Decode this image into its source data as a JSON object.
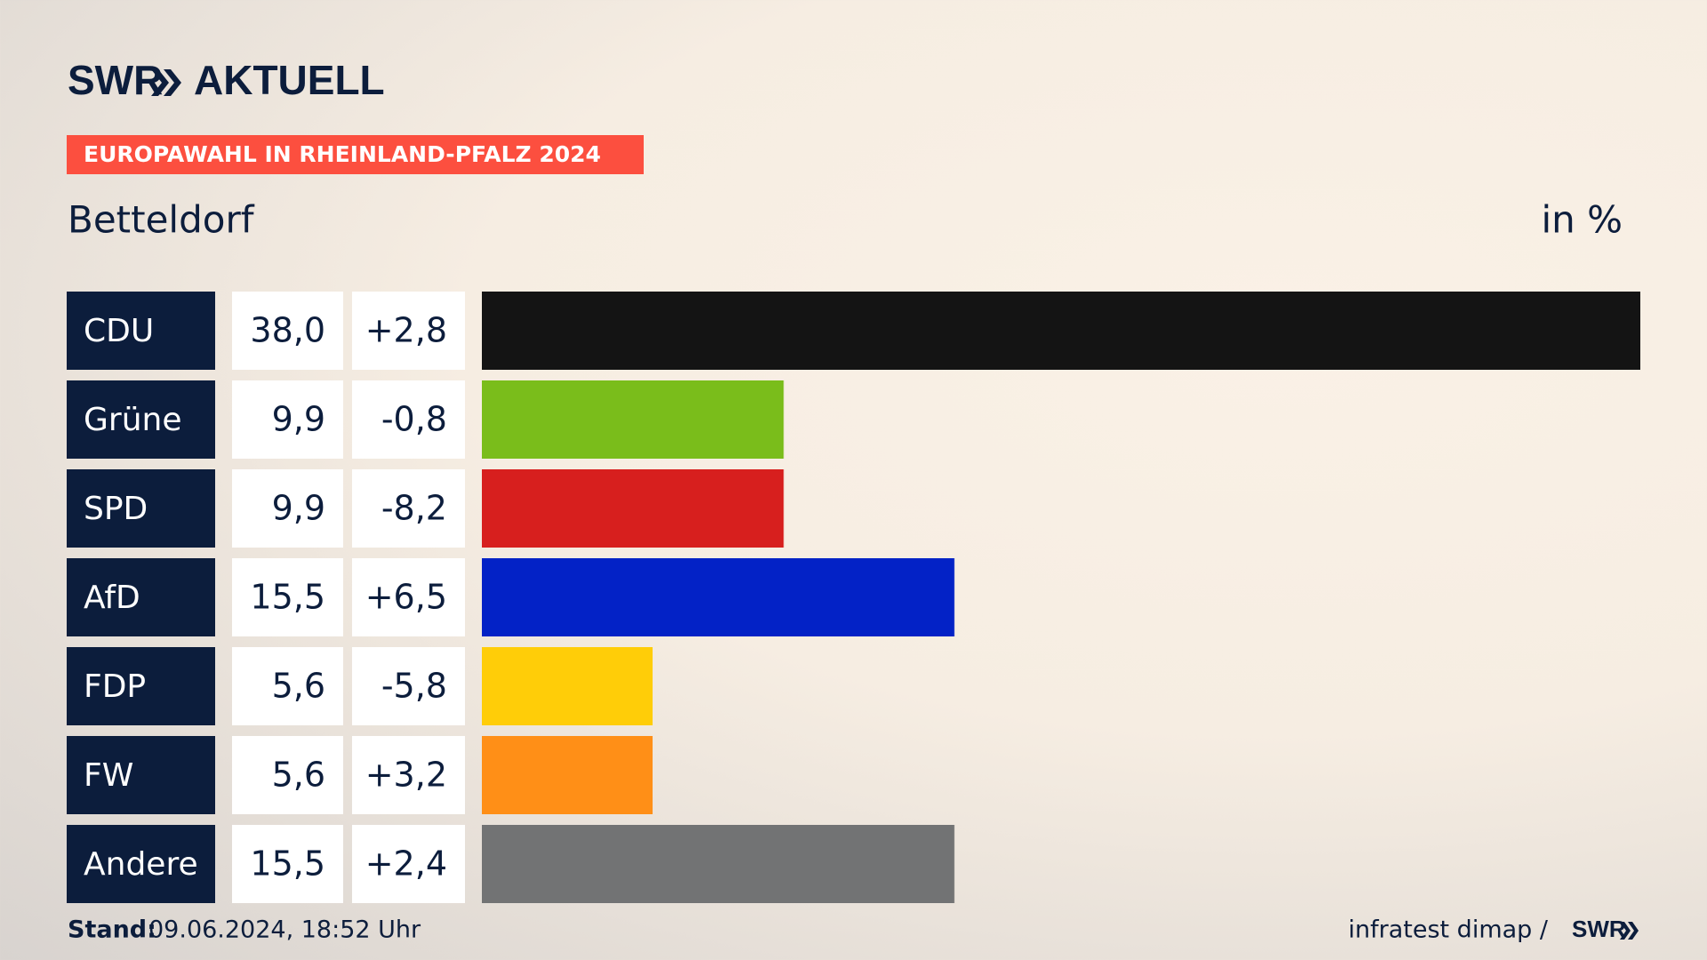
{
  "header": {
    "logo_left": "SWR",
    "logo_right": "AKTUELL",
    "badge": "EUROPAWAHL IN RHEINLAND-PFALZ 2024"
  },
  "chart_data": {
    "type": "bar",
    "title": "Betteldorf",
    "unit": "in %",
    "categories": [
      "CDU",
      "Grüne",
      "SPD",
      "AfD",
      "FDP",
      "FW",
      "Andere"
    ],
    "values": [
      38.0,
      9.9,
      9.9,
      15.5,
      5.6,
      5.6,
      15.5
    ],
    "value_labels": [
      "38,0",
      "9,9",
      "9,9",
      "15,5",
      "5,6",
      "5,6",
      "15,5"
    ],
    "changes": [
      "+2,8",
      "-0,8",
      "-8,2",
      "+6,5",
      "-5,8",
      "+3,2",
      "+2,4"
    ],
    "colors": [
      "#141414",
      "#7ABD1B",
      "#D71F1E",
      "#0322C6",
      "#FFCD08",
      "#FF8F17",
      "#727374"
    ],
    "xlim": [
      0,
      38
    ]
  },
  "footer": {
    "stand_label": "Stand:",
    "stand_value": "09.06.2024, 18:52 Uhr",
    "source": "infratest dimap /",
    "source_logo": "SWR"
  }
}
